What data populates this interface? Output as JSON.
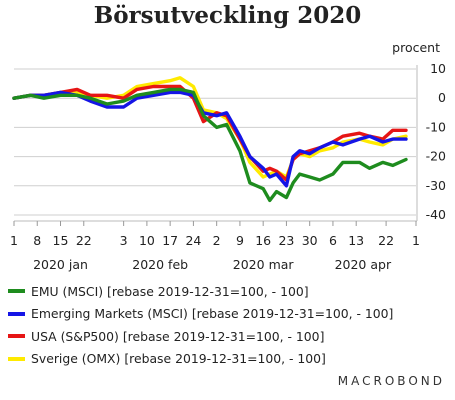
{
  "chart_data": {
    "type": "line",
    "title": "Börsutveckling 2020",
    "ylabel": "procent",
    "ylim": [
      -40,
      10
    ],
    "yticks": [
      10,
      0,
      -10,
      -20,
      -30,
      -40
    ],
    "grid": true,
    "legend_position": "bottom",
    "x_tick_labels": [
      "1",
      "8",
      "15",
      "22",
      "3",
      "10",
      "17",
      "24",
      "2",
      "9",
      "16",
      "23",
      "30",
      "6",
      "13",
      "22",
      "1"
    ],
    "x_tick_dates": [
      "2020-01-01",
      "2020-01-08",
      "2020-01-15",
      "2020-01-22",
      "2020-02-03",
      "2020-02-10",
      "2020-02-17",
      "2020-02-24",
      "2020-03-02",
      "2020-03-09",
      "2020-03-16",
      "2020-03-23",
      "2020-03-30",
      "2020-04-06",
      "2020-04-13",
      "2020-04-22",
      "2020-05-01"
    ],
    "month_labels": [
      {
        "label": "2020 jan",
        "date": "2020-01-15"
      },
      {
        "label": "2020 feb",
        "date": "2020-02-14"
      },
      {
        "label": "2020 mar",
        "date": "2020-03-16"
      },
      {
        "label": "2020 apr",
        "date": "2020-04-15"
      }
    ],
    "x_range": [
      "2020-01-01",
      "2020-05-01"
    ],
    "series": [
      {
        "name": "EMU (MSCI) [rebase 2019-12-31=100, - 100]",
        "color": "#1e8c1e",
        "x": [
          "2020-01-01",
          "2020-01-06",
          "2020-01-10",
          "2020-01-15",
          "2020-01-20",
          "2020-01-24",
          "2020-01-29",
          "2020-02-03",
          "2020-02-07",
          "2020-02-12",
          "2020-02-17",
          "2020-02-20",
          "2020-02-24",
          "2020-02-27",
          "2020-03-02",
          "2020-03-05",
          "2020-03-09",
          "2020-03-12",
          "2020-03-16",
          "2020-03-18",
          "2020-03-20",
          "2020-03-23",
          "2020-03-25",
          "2020-03-27",
          "2020-03-30",
          "2020-04-02",
          "2020-04-06",
          "2020-04-09",
          "2020-04-14",
          "2020-04-17",
          "2020-04-21",
          "2020-04-24",
          "2020-04-28"
        ],
        "y": [
          0,
          1,
          0,
          1,
          1,
          0,
          -2,
          -1,
          1,
          2,
          3,
          3,
          2,
          -6,
          -10,
          -9,
          -18,
          -29,
          -31,
          -35,
          -32,
          -34,
          -29,
          -26,
          -27,
          -28,
          -26,
          -22,
          -22,
          -24,
          -22,
          -23,
          -21
        ]
      },
      {
        "name": "Emerging Markets (MSCI) [rebase 2019-12-31=100, - 100]",
        "color": "#1515e6",
        "x": [
          "2020-01-01",
          "2020-01-06",
          "2020-01-10",
          "2020-01-15",
          "2020-01-20",
          "2020-01-24",
          "2020-01-29",
          "2020-02-03",
          "2020-02-07",
          "2020-02-12",
          "2020-02-17",
          "2020-02-20",
          "2020-02-24",
          "2020-02-27",
          "2020-03-02",
          "2020-03-05",
          "2020-03-09",
          "2020-03-12",
          "2020-03-16",
          "2020-03-18",
          "2020-03-20",
          "2020-03-23",
          "2020-03-25",
          "2020-03-27",
          "2020-03-30",
          "2020-04-02",
          "2020-04-06",
          "2020-04-09",
          "2020-04-14",
          "2020-04-17",
          "2020-04-21",
          "2020-04-24",
          "2020-04-28"
        ],
        "y": [
          0,
          1,
          1,
          2,
          1,
          -1,
          -3,
          -3,
          0,
          1,
          2,
          2,
          1,
          -5,
          -6,
          -5,
          -13,
          -20,
          -24,
          -27,
          -26,
          -30,
          -20,
          -18,
          -19,
          -17,
          -15,
          -16,
          -14,
          -13,
          -15,
          -14,
          -14
        ]
      },
      {
        "name": "USA (S&P500) [rebase 2019-12-31=100, - 100]",
        "color": "#e61515",
        "x": [
          "2020-01-01",
          "2020-01-06",
          "2020-01-10",
          "2020-01-15",
          "2020-01-20",
          "2020-01-24",
          "2020-01-29",
          "2020-02-03",
          "2020-02-07",
          "2020-02-12",
          "2020-02-17",
          "2020-02-20",
          "2020-02-24",
          "2020-02-27",
          "2020-03-02",
          "2020-03-05",
          "2020-03-09",
          "2020-03-12",
          "2020-03-16",
          "2020-03-18",
          "2020-03-20",
          "2020-03-23",
          "2020-03-25",
          "2020-03-27",
          "2020-03-30",
          "2020-04-02",
          "2020-04-06",
          "2020-04-09",
          "2020-04-14",
          "2020-04-17",
          "2020-04-21",
          "2020-04-24",
          "2020-04-28"
        ],
        "y": [
          0,
          1,
          1,
          2,
          3,
          1,
          1,
          0,
          3,
          4,
          4,
          4,
          0,
          -8,
          -5,
          -6,
          -14,
          -20,
          -25,
          -24,
          -25,
          -28,
          -21,
          -19,
          -18,
          -17,
          -15,
          -13,
          -12,
          -13,
          -14,
          -11,
          -11
        ]
      },
      {
        "name": "Sverige (OMX) [rebase 2019-12-31=100, - 100]",
        "color": "#ffea00",
        "x": [
          "2020-01-01",
          "2020-01-06",
          "2020-01-10",
          "2020-01-15",
          "2020-01-20",
          "2020-01-24",
          "2020-01-29",
          "2020-02-03",
          "2020-02-07",
          "2020-02-12",
          "2020-02-17",
          "2020-02-20",
          "2020-02-24",
          "2020-02-27",
          "2020-03-02",
          "2020-03-05",
          "2020-03-09",
          "2020-03-12",
          "2020-03-16",
          "2020-03-18",
          "2020-03-20",
          "2020-03-23",
          "2020-03-25",
          "2020-03-27",
          "2020-03-30",
          "2020-04-02",
          "2020-04-06",
          "2020-04-09",
          "2020-04-14",
          "2020-04-17",
          "2020-04-21",
          "2020-04-24",
          "2020-04-28"
        ],
        "y": [
          0,
          1,
          1,
          2,
          2,
          1,
          0,
          1,
          4,
          5,
          6,
          7,
          4,
          -4,
          -5,
          -7,
          -14,
          -22,
          -27,
          -26,
          -25,
          -27,
          -21,
          -19,
          -20,
          -18,
          -17,
          -15,
          -14,
          -15,
          -16,
          -14,
          -13
        ]
      }
    ]
  },
  "watermark": "MACROBOND"
}
